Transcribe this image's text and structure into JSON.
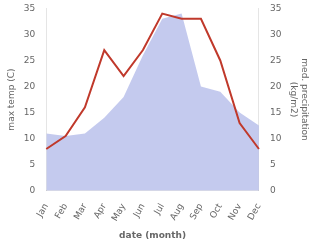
{
  "chart_data": {
    "type": "line",
    "categories": [
      "Jan",
      "Feb",
      "Mar",
      "Apr",
      "May",
      "Jun",
      "Jul",
      "Aug",
      "Sep",
      "Oct",
      "Nov",
      "Dec"
    ],
    "series": [
      {
        "type": "area",
        "color": "#b0b8e8",
        "axis": "y2",
        "values": [
          11,
          10.5,
          11,
          14,
          18,
          26,
          33,
          34,
          20,
          19,
          15,
          12.5
        ]
      },
      {
        "type": "line",
        "color": "#c0392b",
        "values": [
          8,
          10.5,
          16,
          27,
          22,
          27,
          34,
          33,
          33,
          25,
          13,
          8
        ]
      }
    ],
    "xlabel": "date (month)",
    "ylabel": "max temp (C)",
    "y2label": "med. precipitation\n(kg/m2)",
    "ylim": [
      0,
      35
    ],
    "yticks": [
      0,
      5,
      10,
      15,
      20,
      25,
      30,
      35
    ],
    "y2lim": [
      0,
      35
    ],
    "y2ticks": [
      0,
      5,
      10,
      15,
      20,
      25,
      30,
      35
    ],
    "grid": false
  }
}
